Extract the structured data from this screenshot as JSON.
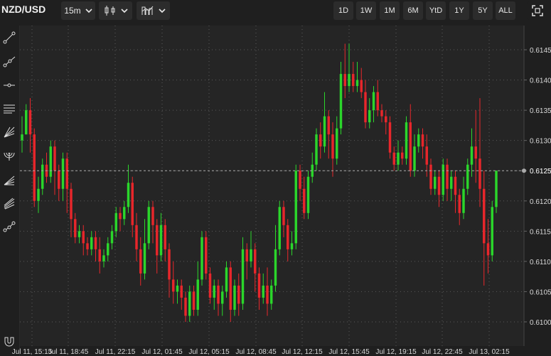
{
  "header": {
    "symbol": "NZD/USD",
    "interval": "15m",
    "chart_type_icon": "candlestick-icon",
    "indicators_icon": "indicators-icon",
    "ranges": [
      "1D",
      "1W",
      "1M",
      "6M",
      "YtD",
      "1Y",
      "5Y",
      "ALL"
    ],
    "fullscreen_icon": "fullscreen-icon"
  },
  "toolbar": {
    "tools": [
      "trend-line-icon",
      "ray-icon",
      "horizontal-line-icon",
      "parallel-channel-icon",
      "fib-fan-icon",
      "fib-arc-icon",
      "gann-fan-icon",
      "pitchfork-icon",
      "polyline-icon"
    ],
    "bottom_tool": "magnet-icon"
  },
  "colors": {
    "up": "#2bd62b",
    "down": "#e8262b",
    "background": "#252525",
    "grid": "#5a5a5a",
    "axis_text": "#d8d8d8"
  },
  "chart_data": {
    "type": "candlestick",
    "title": "",
    "xlabel": "",
    "ylabel": "",
    "ylim": [
      0.6096,
      0.6149
    ],
    "y_ticks": [
      0.6145,
      0.614,
      0.6135,
      0.613,
      0.6125,
      0.612,
      0.6115,
      0.611,
      0.6105,
      0.61
    ],
    "y_tick_labels": [
      "0.6145",
      "0.6140",
      "0.6135",
      "0.6130",
      "0.6125",
      "0.6120",
      "0.6115",
      "0.6110",
      "0.6105",
      "0.6100"
    ],
    "x_tick_labels": [
      "Jul 11, 15:15",
      "Jul 11, 18:45",
      "Jul 11, 22:15",
      "Jul 12, 01:45",
      "Jul 12, 05:15",
      "Jul 12, 08:45",
      "Jul 12, 12:15",
      "Jul 12, 15:45",
      "Jul 12, 19:15",
      "Jul 12, 22:45",
      "Jul 13, 02:15"
    ],
    "last_price": 0.6125,
    "last_price_label": "0.6125",
    "grid": true,
    "candles": [
      [
        0.613,
        0.6131,
        0.6128,
        0.6134
      ],
      [
        0.6131,
        0.6135,
        0.6131,
        0.6136
      ],
      [
        0.6135,
        0.6131,
        0.6128,
        0.6137
      ],
      [
        0.6131,
        0.612,
        0.6119,
        0.6132
      ],
      [
        0.612,
        0.6122,
        0.6118,
        0.6124
      ],
      [
        0.6122,
        0.6126,
        0.6121,
        0.6127
      ],
      [
        0.6126,
        0.6124,
        0.6123,
        0.6128
      ],
      [
        0.6124,
        0.6129,
        0.6123,
        0.613
      ],
      [
        0.6129,
        0.6125,
        0.6121,
        0.613
      ],
      [
        0.6125,
        0.6122,
        0.612,
        0.6126
      ],
      [
        0.6122,
        0.6127,
        0.612,
        0.6128
      ],
      [
        0.6127,
        0.6122,
        0.6118,
        0.6128
      ],
      [
        0.6122,
        0.6117,
        0.6114,
        0.6123
      ],
      [
        0.6117,
        0.6114,
        0.6113,
        0.6118
      ],
      [
        0.6114,
        0.6115,
        0.6113,
        0.6116
      ],
      [
        0.6115,
        0.6113,
        0.6111,
        0.6116
      ],
      [
        0.6113,
        0.6112,
        0.6111,
        0.6114
      ],
      [
        0.6112,
        0.6114,
        0.6111,
        0.6115
      ],
      [
        0.6114,
        0.6112,
        0.611,
        0.6115
      ],
      [
        0.6112,
        0.611,
        0.6108,
        0.6114
      ],
      [
        0.611,
        0.6111,
        0.6109,
        0.6112
      ],
      [
        0.6111,
        0.6113,
        0.611,
        0.6114
      ],
      [
        0.6113,
        0.6115,
        0.6112,
        0.6116
      ],
      [
        0.6115,
        0.6118,
        0.6114,
        0.6119
      ],
      [
        0.6118,
        0.6117,
        0.6115,
        0.6119
      ],
      [
        0.6117,
        0.6119,
        0.6116,
        0.612
      ],
      [
        0.6119,
        0.6123,
        0.6118,
        0.6126
      ],
      [
        0.6123,
        0.6116,
        0.6114,
        0.6124
      ],
      [
        0.6116,
        0.6112,
        0.611,
        0.6118
      ],
      [
        0.6112,
        0.6108,
        0.6106,
        0.6114
      ],
      [
        0.6108,
        0.6113,
        0.6107,
        0.6117
      ],
      [
        0.6113,
        0.6119,
        0.6112,
        0.612
      ],
      [
        0.6119,
        0.6116,
        0.6113,
        0.612
      ],
      [
        0.6116,
        0.6111,
        0.6108,
        0.6117
      ],
      [
        0.6111,
        0.6116,
        0.611,
        0.6118
      ],
      [
        0.6116,
        0.6112,
        0.611,
        0.6117
      ],
      [
        0.6112,
        0.6107,
        0.6104,
        0.6113
      ],
      [
        0.6107,
        0.6105,
        0.6103,
        0.611
      ],
      [
        0.6105,
        0.6106,
        0.6103,
        0.6107
      ],
      [
        0.6106,
        0.6104,
        0.6102,
        0.6107
      ],
      [
        0.6104,
        0.6101,
        0.61,
        0.6105
      ],
      [
        0.6101,
        0.6105,
        0.61,
        0.6106
      ],
      [
        0.6105,
        0.6102,
        0.6101,
        0.6106
      ],
      [
        0.6102,
        0.6107,
        0.6101,
        0.611
      ],
      [
        0.6107,
        0.6114,
        0.6106,
        0.6115
      ],
      [
        0.6114,
        0.6108,
        0.6107,
        0.6115
      ],
      [
        0.6108,
        0.6104,
        0.6103,
        0.6109
      ],
      [
        0.6104,
        0.6106,
        0.6102,
        0.6107
      ],
      [
        0.6106,
        0.6103,
        0.6101,
        0.6107
      ],
      [
        0.6103,
        0.6105,
        0.6101,
        0.6106
      ],
      [
        0.6105,
        0.6109,
        0.6104,
        0.611
      ],
      [
        0.6109,
        0.6102,
        0.61,
        0.611
      ],
      [
        0.6102,
        0.6106,
        0.6101,
        0.6107
      ],
      [
        0.6106,
        0.6103,
        0.6101,
        0.6108
      ],
      [
        0.6103,
        0.6112,
        0.6102,
        0.6114
      ],
      [
        0.6112,
        0.611,
        0.6107,
        0.6113
      ],
      [
        0.611,
        0.6112,
        0.6109,
        0.6115
      ],
      [
        0.6112,
        0.6108,
        0.6105,
        0.6113
      ],
      [
        0.6108,
        0.6104,
        0.6102,
        0.6109
      ],
      [
        0.6104,
        0.6106,
        0.6103,
        0.6108
      ],
      [
        0.6106,
        0.6103,
        0.6101,
        0.6109
      ],
      [
        0.6103,
        0.6106,
        0.6102,
        0.6107
      ],
      [
        0.6106,
        0.6112,
        0.6105,
        0.6116
      ],
      [
        0.6112,
        0.6119,
        0.6111,
        0.612
      ],
      [
        0.6119,
        0.6116,
        0.6114,
        0.612
      ],
      [
        0.6116,
        0.6112,
        0.611,
        0.6117
      ],
      [
        0.6112,
        0.6113,
        0.6111,
        0.6115
      ],
      [
        0.6113,
        0.6125,
        0.6112,
        0.6126
      ],
      [
        0.6125,
        0.6122,
        0.612,
        0.6126
      ],
      [
        0.6122,
        0.6118,
        0.6117,
        0.6124
      ],
      [
        0.6118,
        0.6124,
        0.6117,
        0.6125
      ],
      [
        0.6124,
        0.6126,
        0.6123,
        0.6128
      ],
      [
        0.6126,
        0.6131,
        0.6125,
        0.6132
      ],
      [
        0.6131,
        0.6129,
        0.6127,
        0.6133
      ],
      [
        0.6129,
        0.6134,
        0.6128,
        0.6138
      ],
      [
        0.6134,
        0.6131,
        0.6127,
        0.6135
      ],
      [
        0.6131,
        0.6127,
        0.6124,
        0.6133
      ],
      [
        0.6127,
        0.6132,
        0.6126,
        0.6134
      ],
      [
        0.6132,
        0.6141,
        0.6131,
        0.6143
      ],
      [
        0.6141,
        0.6139,
        0.6137,
        0.6146
      ],
      [
        0.6139,
        0.6141,
        0.6138,
        0.6146
      ],
      [
        0.6141,
        0.6139,
        0.6138,
        0.6143
      ],
      [
        0.6139,
        0.614,
        0.6138,
        0.6143
      ],
      [
        0.614,
        0.6138,
        0.6137,
        0.6142
      ],
      [
        0.6138,
        0.6133,
        0.6132,
        0.614
      ],
      [
        0.6133,
        0.6135,
        0.6132,
        0.6137
      ],
      [
        0.6135,
        0.6138,
        0.6133,
        0.6139
      ],
      [
        0.6138,
        0.6135,
        0.6134,
        0.614
      ],
      [
        0.6135,
        0.6134,
        0.6133,
        0.6136
      ],
      [
        0.6134,
        0.6133,
        0.6131,
        0.6135
      ],
      [
        0.6133,
        0.6128,
        0.6127,
        0.6134
      ],
      [
        0.6128,
        0.6126,
        0.6125,
        0.6129
      ],
      [
        0.6126,
        0.6128,
        0.6125,
        0.613
      ],
      [
        0.6128,
        0.6127,
        0.6126,
        0.6129
      ],
      [
        0.6127,
        0.6133,
        0.6126,
        0.6134
      ],
      [
        0.6133,
        0.6125,
        0.6124,
        0.6136
      ],
      [
        0.6125,
        0.6129,
        0.6124,
        0.6131
      ],
      [
        0.6129,
        0.6131,
        0.6128,
        0.6132
      ],
      [
        0.6131,
        0.6129,
        0.6127,
        0.6132
      ],
      [
        0.6129,
        0.6126,
        0.6124,
        0.6131
      ],
      [
        0.6126,
        0.6122,
        0.6121,
        0.6127
      ],
      [
        0.6122,
        0.6124,
        0.6121,
        0.6125
      ],
      [
        0.6124,
        0.6121,
        0.6119,
        0.6125
      ],
      [
        0.6121,
        0.6126,
        0.612,
        0.6127
      ],
      [
        0.6126,
        0.6122,
        0.612,
        0.6127
      ],
      [
        0.6122,
        0.6124,
        0.612,
        0.6125
      ],
      [
        0.6124,
        0.6121,
        0.6118,
        0.6125
      ],
      [
        0.6121,
        0.6118,
        0.6116,
        0.6122
      ],
      [
        0.6118,
        0.6122,
        0.6117,
        0.6124
      ],
      [
        0.6122,
        0.6126,
        0.6121,
        0.6127
      ],
      [
        0.6126,
        0.6129,
        0.6124,
        0.6132
      ],
      [
        0.6129,
        0.6127,
        0.6123,
        0.6135
      ],
      [
        0.6127,
        0.6122,
        0.6119,
        0.6137
      ],
      [
        0.6122,
        0.6113,
        0.6106,
        0.6125
      ],
      [
        0.6113,
        0.6111,
        0.6108,
        0.6117
      ],
      [
        0.6111,
        0.6119,
        0.611,
        0.612
      ],
      [
        0.6119,
        0.6125,
        0.6118,
        0.6125
      ]
    ]
  }
}
